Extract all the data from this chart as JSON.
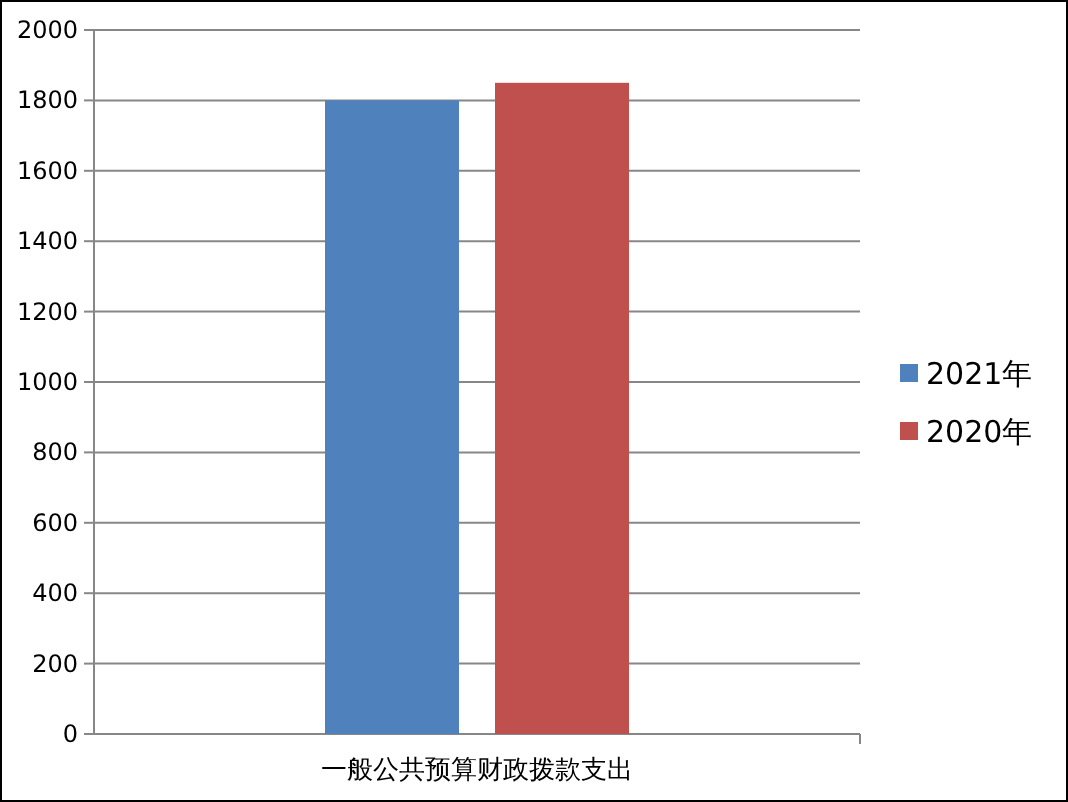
{
  "chart_data": {
    "type": "bar",
    "categories": [
      "一般公共预算财政拨款支出"
    ],
    "series": [
      {
        "name": "2021年",
        "color": "#4f81bd",
        "values": [
          1800
        ]
      },
      {
        "name": "2020年",
        "color": "#c0504d",
        "values": [
          1850
        ]
      }
    ],
    "ylim": [
      0,
      2000
    ],
    "yticks": [
      0,
      200,
      400,
      600,
      800,
      1000,
      1200,
      1400,
      1600,
      1800,
      2000
    ],
    "grid": "y",
    "legend": "right"
  }
}
